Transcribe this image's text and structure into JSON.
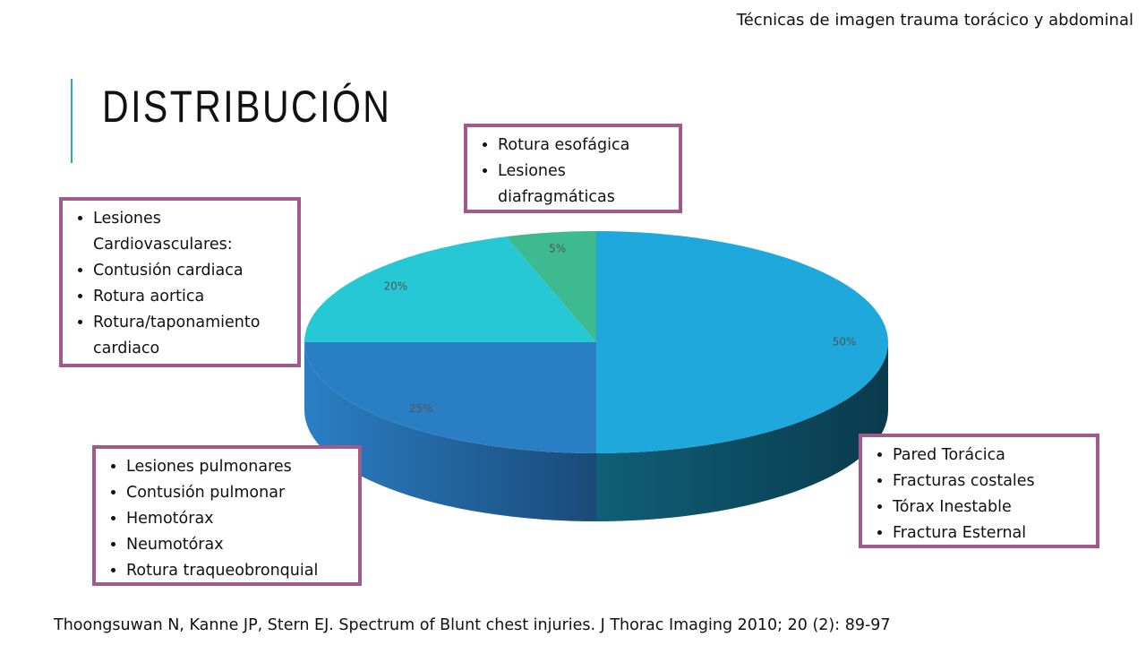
{
  "header": {
    "subject": "Técnicas de imagen trauma torácico y abdominal"
  },
  "title": "DISTRIBUCIÓN",
  "chart_data": {
    "type": "pie",
    "values": [
      50,
      25,
      20,
      5
    ],
    "value_labels": [
      "50%",
      "25%",
      "20%",
      "5%"
    ],
    "colors": [
      "#1fa8dc",
      "#2a7fc4",
      "#27c8d6",
      "#3dba8f"
    ]
  },
  "callouts": [
    {
      "items": [
        "Rotura esofágica",
        "Lesiones diafragmáticas"
      ]
    },
    {
      "items": [
        "Lesiones Cardiovasculares:",
        "Contusión cardiaca",
        "Rotura aortica",
        "Rotura/taponamiento cardiaco"
      ]
    },
    {
      "items": [
        "Lesiones pulmonares",
        "Contusión pulmonar",
        "Hemotórax",
        "Neumotórax",
        "Rotura traqueobronquial"
      ]
    },
    {
      "items": [
        "Pared Torácica",
        "Fracturas costales",
        "Tórax Inestable",
        "Fractura Esternal"
      ]
    }
  ],
  "citation": "Thoongsuwan N, Kanne JP, Stern EJ. Spectrum of Blunt chest injuries. J Thorac Imaging 2010; 20 (2): 89-97"
}
